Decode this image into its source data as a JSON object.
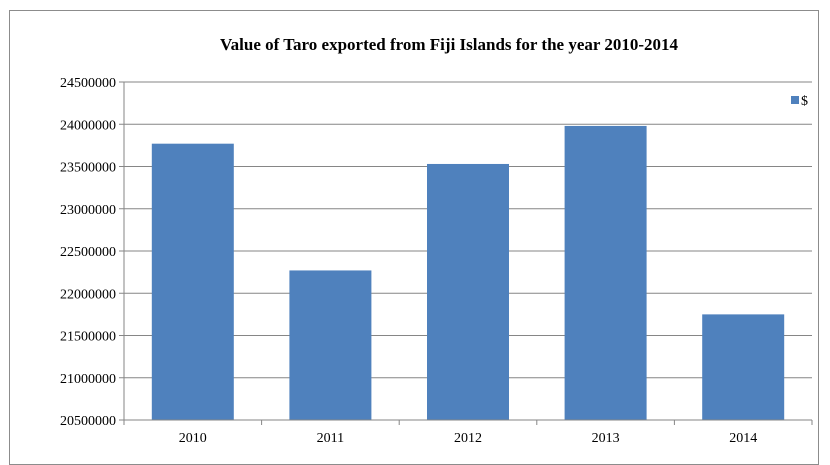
{
  "chart_data": {
    "type": "bar",
    "title": "Value of Taro exported from Fiji Islands for the year 2010-2014",
    "xlabel": "",
    "ylabel": "",
    "categories": [
      "2010",
      "2011",
      "2012",
      "2013",
      "2014"
    ],
    "series": [
      {
        "name": "$",
        "values": [
          23770000,
          22270000,
          23530000,
          23980000,
          21750000
        ]
      }
    ],
    "ylim": [
      20500000,
      24500000
    ],
    "yticks": [
      20500000,
      21000000,
      21500000,
      22000000,
      22500000,
      23000000,
      23500000,
      24000000,
      24500000
    ],
    "grid": true,
    "legend_position": "top-right",
    "colors": {
      "bar": "#4f81bd",
      "grid": "#868686",
      "axis": "#868686"
    }
  }
}
